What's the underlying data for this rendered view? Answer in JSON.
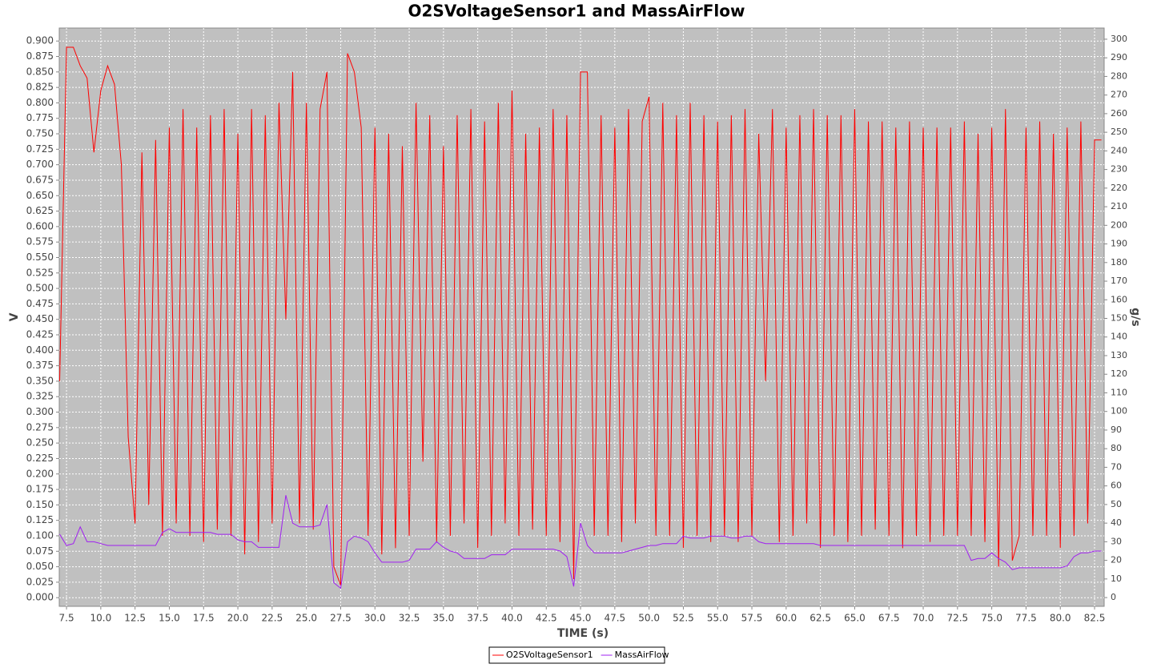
{
  "chart_data": {
    "type": "line",
    "title": "O2SVoltageSensor1 and MassAirFlow",
    "xlabel": "TIME (s)",
    "ylabel": "V",
    "y2label": "g/s",
    "grid": true,
    "legend": "bottom",
    "xlim": [
      6.97,
      83.2
    ],
    "ylim": [
      -0.014,
      0.921
    ],
    "y2lim": [
      -4.7,
      306
    ],
    "xticks": [
      {
        "value": 7.5,
        "label": "7.5"
      },
      {
        "value": 10,
        "label": "10.0"
      },
      {
        "value": 12.5,
        "label": "12.5"
      },
      {
        "value": 15,
        "label": "15.0"
      },
      {
        "value": 17.5,
        "label": "17.5"
      },
      {
        "value": 20,
        "label": "20.0"
      },
      {
        "value": 22.5,
        "label": "22.5"
      },
      {
        "value": 25,
        "label": "25.0"
      },
      {
        "value": 27.5,
        "label": "27.5"
      },
      {
        "value": 30,
        "label": "30.0"
      },
      {
        "value": 32.5,
        "label": "32.5"
      },
      {
        "value": 35,
        "label": "35.0"
      },
      {
        "value": 37.5,
        "label": "37.5"
      },
      {
        "value": 40,
        "label": "40.0"
      },
      {
        "value": 42.5,
        "label": "42.5"
      },
      {
        "value": 45,
        "label": "45.0"
      },
      {
        "value": 47.5,
        "label": "47.5"
      },
      {
        "value": 50,
        "label": "50.0"
      },
      {
        "value": 52.5,
        "label": "52.5"
      },
      {
        "value": 55,
        "label": "55.0"
      },
      {
        "value": 57.5,
        "label": "57.5"
      },
      {
        "value": 60,
        "label": "60.0"
      },
      {
        "value": 62.5,
        "label": "62.5"
      },
      {
        "value": 65,
        "label": "65.0"
      },
      {
        "value": 67.5,
        "label": "67.5"
      },
      {
        "value": 70,
        "label": "70.0"
      },
      {
        "value": 72.5,
        "label": "72.5"
      },
      {
        "value": 75,
        "label": "75.0"
      },
      {
        "value": 77.5,
        "label": "77.5"
      },
      {
        "value": 80,
        "label": "80.0"
      },
      {
        "value": 82.5,
        "label": "82.5"
      }
    ],
    "yticks": [
      {
        "value": 0,
        "label": "0.000"
      },
      {
        "value": 0.025,
        "label": "0.025"
      },
      {
        "value": 0.05,
        "label": "0.050"
      },
      {
        "value": 0.075,
        "label": "0.075"
      },
      {
        "value": 0.1,
        "label": "0.100"
      },
      {
        "value": 0.125,
        "label": "0.125"
      },
      {
        "value": 0.15,
        "label": "0.150"
      },
      {
        "value": 0.175,
        "label": "0.175"
      },
      {
        "value": 0.2,
        "label": "0.200"
      },
      {
        "value": 0.225,
        "label": "0.225"
      },
      {
        "value": 0.25,
        "label": "0.250"
      },
      {
        "value": 0.275,
        "label": "0.275"
      },
      {
        "value": 0.3,
        "label": "0.300"
      },
      {
        "value": 0.325,
        "label": "0.325"
      },
      {
        "value": 0.35,
        "label": "0.350"
      },
      {
        "value": 0.375,
        "label": "0.375"
      },
      {
        "value": 0.4,
        "label": "0.400"
      },
      {
        "value": 0.425,
        "label": "0.425"
      },
      {
        "value": 0.45,
        "label": "0.450"
      },
      {
        "value": 0.475,
        "label": "0.475"
      },
      {
        "value": 0.5,
        "label": "0.500"
      },
      {
        "value": 0.525,
        "label": "0.525"
      },
      {
        "value": 0.55,
        "label": "0.550"
      },
      {
        "value": 0.575,
        "label": "0.575"
      },
      {
        "value": 0.6,
        "label": "0.600"
      },
      {
        "value": 0.625,
        "label": "0.625"
      },
      {
        "value": 0.65,
        "label": "0.650"
      },
      {
        "value": 0.675,
        "label": "0.675"
      },
      {
        "value": 0.7,
        "label": "0.700"
      },
      {
        "value": 0.725,
        "label": "0.725"
      },
      {
        "value": 0.75,
        "label": "0.750"
      },
      {
        "value": 0.775,
        "label": "0.775"
      },
      {
        "value": 0.8,
        "label": "0.800"
      },
      {
        "value": 0.825,
        "label": "0.825"
      },
      {
        "value": 0.85,
        "label": "0.850"
      },
      {
        "value": 0.875,
        "label": "0.875"
      },
      {
        "value": 0.9,
        "label": "0.900"
      }
    ],
    "y2ticks": [
      0,
      10,
      20,
      30,
      40,
      50,
      60,
      70,
      80,
      90,
      100,
      110,
      120,
      130,
      140,
      150,
      160,
      170,
      180,
      190,
      200,
      210,
      220,
      230,
      240,
      250,
      260,
      270,
      280,
      290,
      300
    ],
    "x": [
      7,
      7.5,
      8,
      8.5,
      9,
      9.5,
      10,
      10.5,
      11,
      11.5,
      12,
      12.5,
      13,
      13.5,
      14,
      14.5,
      15,
      15.5,
      16,
      16.5,
      17,
      17.5,
      18,
      18.5,
      19,
      19.5,
      20,
      20.5,
      21,
      21.5,
      22,
      22.5,
      23,
      23.5,
      24,
      24.5,
      25,
      25.5,
      26,
      26.5,
      27,
      27.5,
      28,
      28.5,
      29,
      29.5,
      30,
      30.5,
      31,
      31.5,
      32,
      32.5,
      33,
      33.5,
      34,
      34.5,
      35,
      35.5,
      36,
      36.5,
      37,
      37.5,
      38,
      38.5,
      39,
      39.5,
      40,
      40.5,
      41,
      41.5,
      42,
      42.5,
      43,
      43.5,
      44,
      44.5,
      45,
      45.5,
      46,
      46.5,
      47,
      47.5,
      48,
      48.5,
      49,
      49.5,
      50,
      50.5,
      51,
      51.5,
      52,
      52.5,
      53,
      53.5,
      54,
      54.5,
      55,
      55.5,
      56,
      56.5,
      57,
      57.5,
      58,
      58.5,
      59,
      59.5,
      60,
      60.5,
      61,
      61.5,
      62,
      62.5,
      63,
      63.5,
      64,
      64.5,
      65,
      65.5,
      66,
      66.5,
      67,
      67.5,
      68,
      68.5,
      69,
      69.5,
      70,
      70.5,
      71,
      71.5,
      72,
      72.5,
      73,
      73.5,
      74,
      74.5,
      75,
      75.5,
      76,
      76.5,
      77,
      77.5,
      78,
      78.5,
      79,
      79.5,
      80,
      80.5,
      81,
      81.5,
      82,
      82.5,
      83
    ],
    "series": [
      {
        "name": "O2SVoltageSensor1",
        "color": "#ff0000",
        "values": [
          0.35,
          0.89,
          0.89,
          0.86,
          0.84,
          0.72,
          0.82,
          0.86,
          0.83,
          0.7,
          0.26,
          0.12,
          0.72,
          0.15,
          0.74,
          0.1,
          0.76,
          0.12,
          0.79,
          0.1,
          0.76,
          0.09,
          0.78,
          0.11,
          0.79,
          0.1,
          0.75,
          0.07,
          0.79,
          0.09,
          0.78,
          0.12,
          0.8,
          0.45,
          0.85,
          0.12,
          0.8,
          0.11,
          0.79,
          0.85,
          0.05,
          0.02,
          0.88,
          0.85,
          0.76,
          0.1,
          0.76,
          0.07,
          0.75,
          0.08,
          0.73,
          0.1,
          0.8,
          0.22,
          0.78,
          0.09,
          0.73,
          0.1,
          0.78,
          0.12,
          0.79,
          0.08,
          0.77,
          0.1,
          0.8,
          0.12,
          0.82,
          0.1,
          0.75,
          0.11,
          0.76,
          0.1,
          0.79,
          0.09,
          0.78,
          0.03,
          0.85,
          0.85,
          0.1,
          0.78,
          0.1,
          0.76,
          0.09,
          0.79,
          0.12,
          0.77,
          0.81,
          0.1,
          0.8,
          0.1,
          0.78,
          0.08,
          0.8,
          0.1,
          0.78,
          0.09,
          0.77,
          0.1,
          0.78,
          0.09,
          0.79,
          0.1,
          0.75,
          0.35,
          0.79,
          0.09,
          0.76,
          0.1,
          0.78,
          0.12,
          0.79,
          0.08,
          0.78,
          0.1,
          0.78,
          0.09,
          0.79,
          0.1,
          0.77,
          0.11,
          0.77,
          0.1,
          0.76,
          0.08,
          0.77,
          0.1,
          0.76,
          0.09,
          0.76,
          0.1,
          0.76,
          0.1,
          0.77,
          0.1,
          0.75,
          0.09,
          0.76,
          0.05,
          0.79,
          0.06,
          0.1,
          0.76,
          0.1,
          0.77,
          0.1,
          0.75,
          0.08,
          0.76,
          0.1,
          0.77,
          0.12,
          0.74,
          0.74
        ]
      },
      {
        "name": "MassAirFlow",
        "color": "#a020f0",
        "axis": "y2",
        "values": [
          34,
          28,
          29,
          38,
          30,
          30,
          29,
          28,
          28,
          28,
          28,
          28,
          28,
          28,
          28,
          35,
          37,
          35,
          35,
          35,
          35,
          35,
          35,
          34,
          34,
          34,
          31,
          30,
          30,
          27,
          27,
          27,
          27,
          55,
          40,
          38,
          38,
          38,
          39,
          50,
          8,
          5,
          30,
          33,
          32,
          30,
          24,
          19,
          19,
          19,
          19,
          20,
          26,
          26,
          26,
          30,
          27,
          25,
          24,
          21,
          21,
          21,
          21,
          23,
          23,
          23,
          26,
          26,
          26,
          26,
          26,
          26,
          26,
          25,
          22,
          6,
          40,
          28,
          24,
          24,
          24,
          24,
          24,
          25,
          26,
          27,
          28,
          28,
          29,
          29,
          29,
          33,
          32,
          32,
          32,
          33,
          33,
          33,
          32,
          32,
          33,
          33,
          30,
          29,
          29,
          29,
          29,
          29,
          29,
          29,
          29,
          28,
          28,
          28,
          28,
          28,
          28,
          28,
          28,
          28,
          28,
          28,
          28,
          28,
          28,
          28,
          28,
          28,
          28,
          28,
          28,
          28,
          28,
          20,
          21,
          21,
          24,
          21,
          19,
          15,
          16,
          16,
          16,
          16,
          16,
          16,
          16,
          17,
          22,
          24,
          24,
          25,
          25
        ]
      }
    ]
  }
}
